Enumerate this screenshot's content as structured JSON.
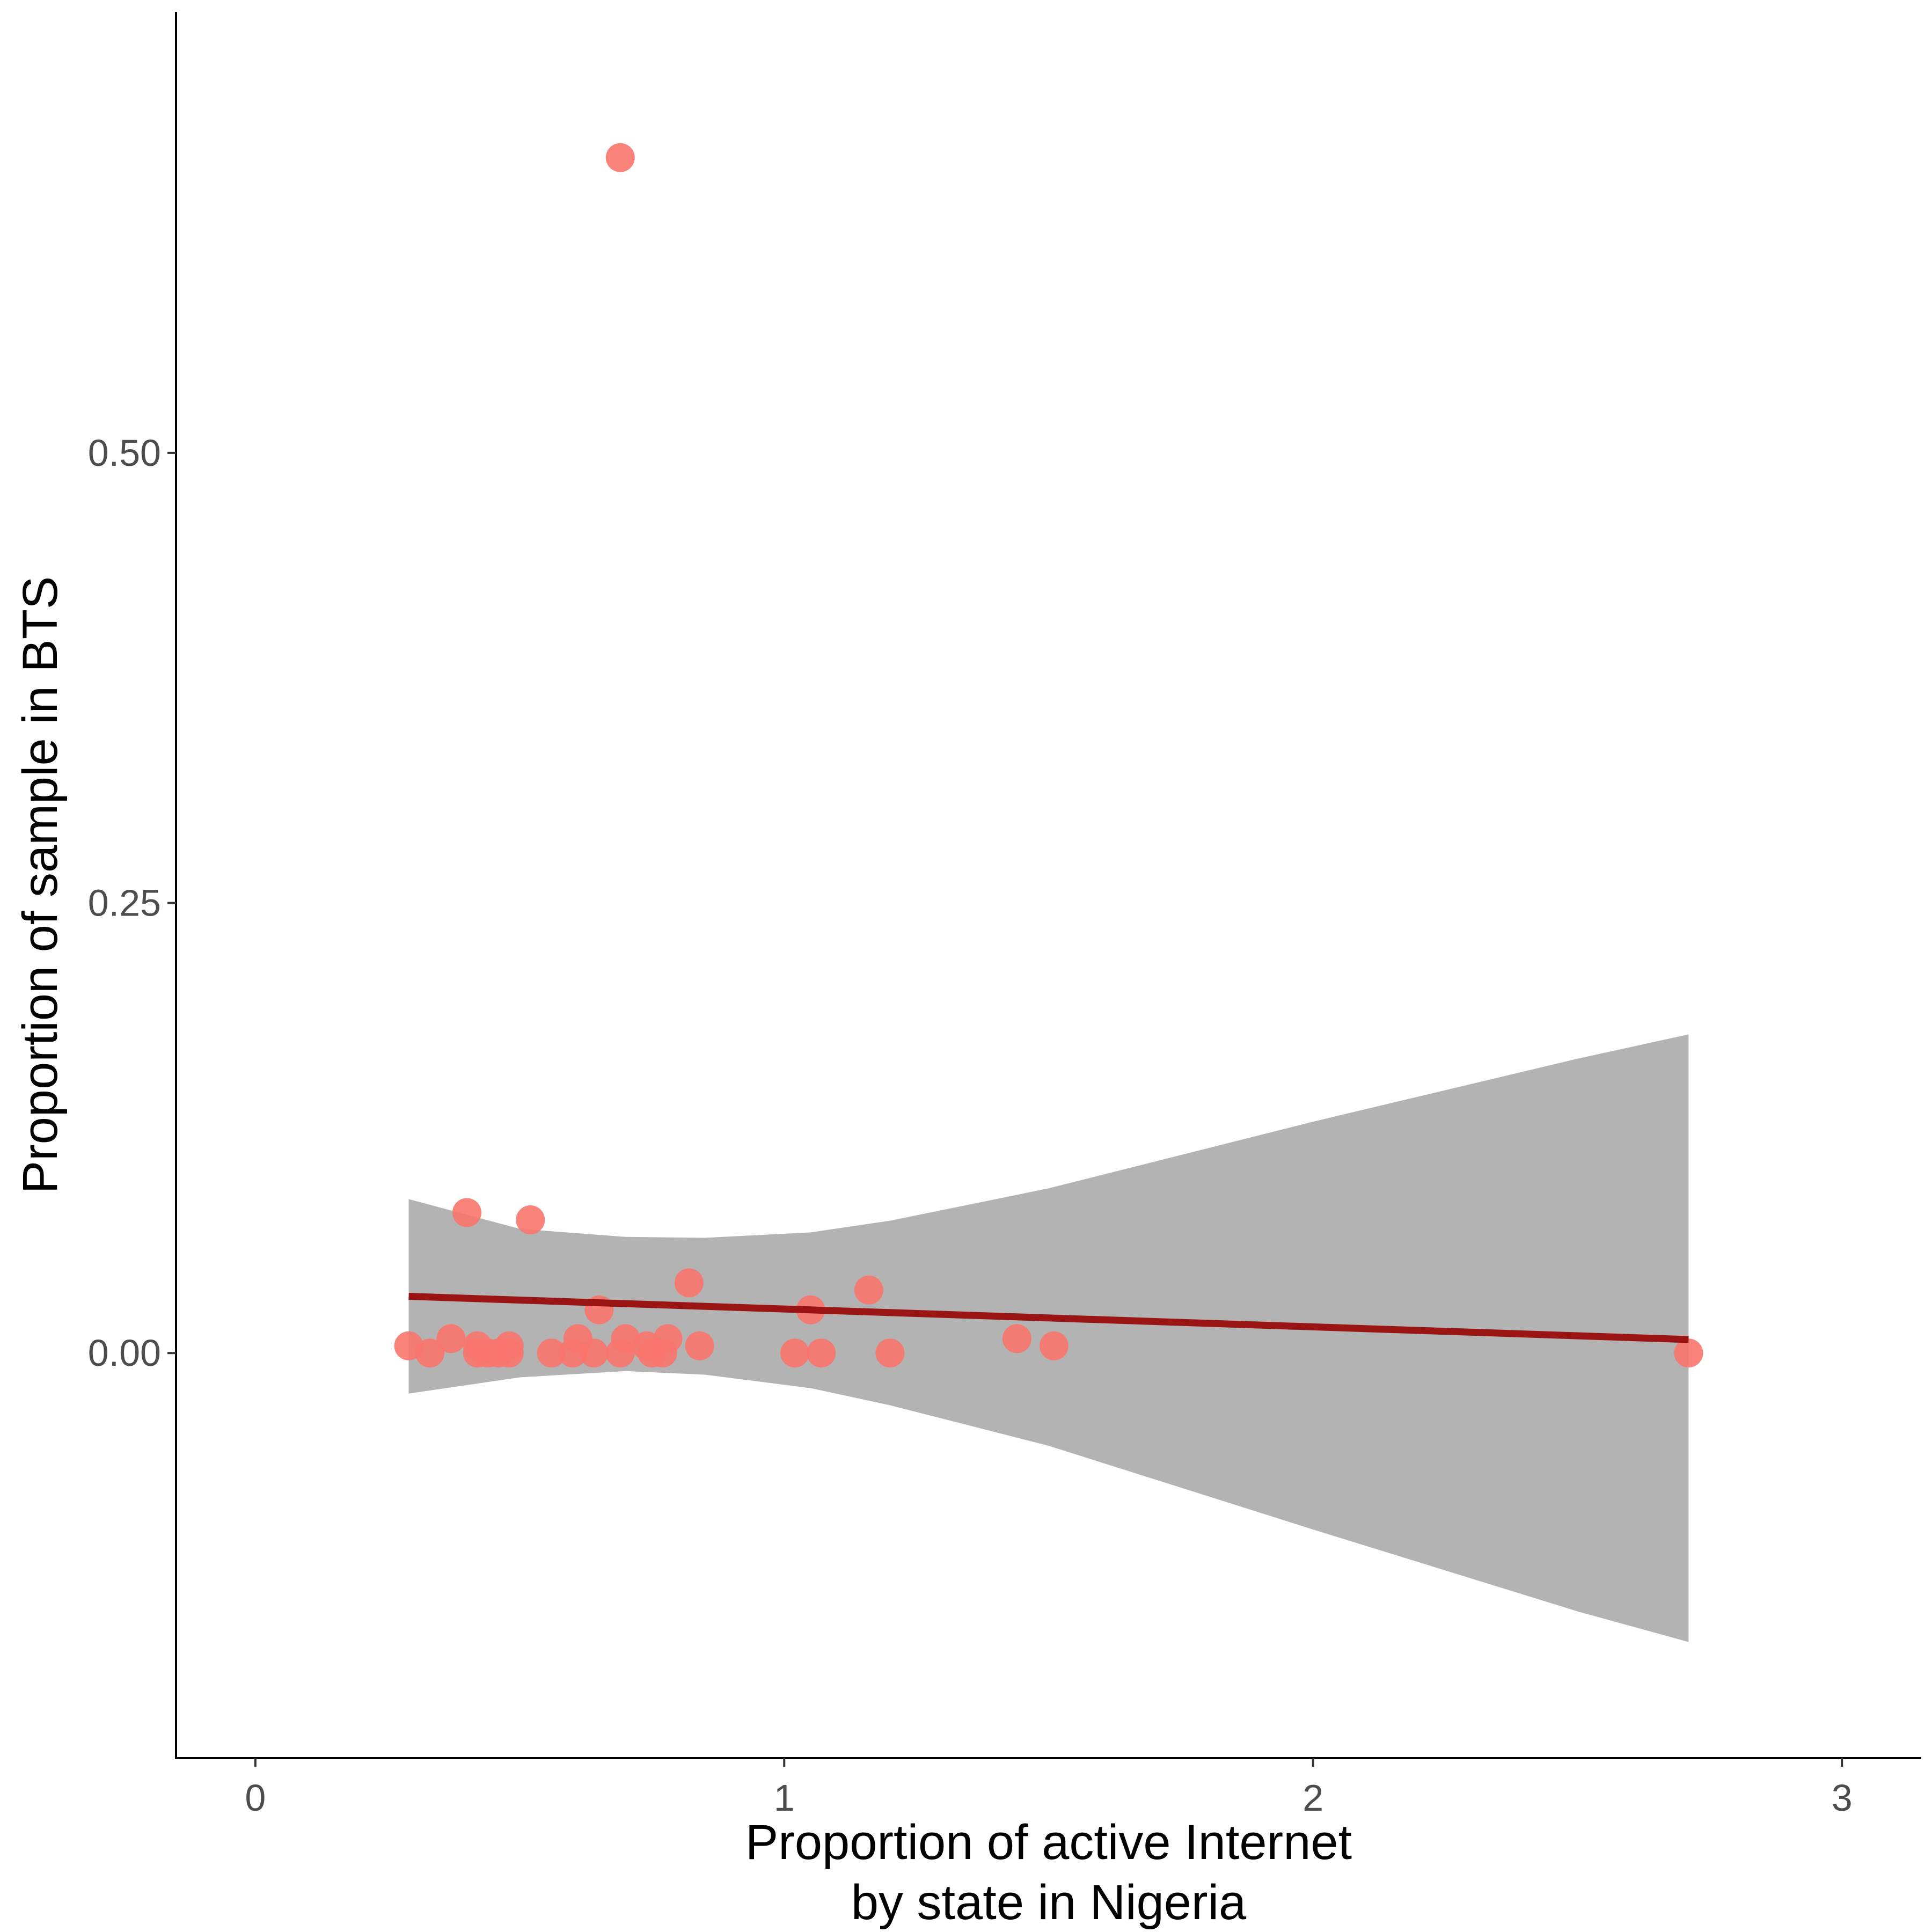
{
  "chart_data": {
    "type": "scatter",
    "title": "",
    "xlabel_lines": [
      "Proportion of active Internet",
      "by state in Nigeria"
    ],
    "ylabel": "Proportion of sample in BTS",
    "xlim": [
      -0.15,
      3.15
    ],
    "ylim": [
      -0.225,
      0.745
    ],
    "x_ticks": [
      {
        "value": 0,
        "label": "0"
      },
      {
        "value": 1,
        "label": "1"
      },
      {
        "value": 2,
        "label": "2"
      },
      {
        "value": 3,
        "label": "3"
      }
    ],
    "y_ticks": [
      {
        "value": 0.0,
        "label": "0.00"
      },
      {
        "value": 0.25,
        "label": "0.25"
      },
      {
        "value": 0.5,
        "label": "0.50"
      }
    ],
    "grid": false,
    "legend": "none",
    "colors": {
      "points": "#F8766D",
      "trend_line": "#9B1414",
      "confidence_band": "#999999"
    },
    "points": [
      {
        "x": 0.29,
        "y": 0.004
      },
      {
        "x": 0.33,
        "y": 0.0
      },
      {
        "x": 0.37,
        "y": 0.008
      },
      {
        "x": 0.4,
        "y": 0.078
      },
      {
        "x": 0.42,
        "y": 0.004
      },
      {
        "x": 0.42,
        "y": 0.0
      },
      {
        "x": 0.44,
        "y": 0.0
      },
      {
        "x": 0.46,
        "y": 0.0
      },
      {
        "x": 0.48,
        "y": 0.004
      },
      {
        "x": 0.48,
        "y": 0.0
      },
      {
        "x": 0.52,
        "y": 0.074
      },
      {
        "x": 0.56,
        "y": 0.0
      },
      {
        "x": 0.6,
        "y": 0.0
      },
      {
        "x": 0.61,
        "y": 0.008
      },
      {
        "x": 0.64,
        "y": 0.0
      },
      {
        "x": 0.65,
        "y": 0.024
      },
      {
        "x": 0.69,
        "y": 0.664
      },
      {
        "x": 0.69,
        "y": 0.0
      },
      {
        "x": 0.7,
        "y": 0.008
      },
      {
        "x": 0.74,
        "y": 0.004
      },
      {
        "x": 0.75,
        "y": 0.0
      },
      {
        "x": 0.77,
        "y": 0.0
      },
      {
        "x": 0.78,
        "y": 0.008
      },
      {
        "x": 0.82,
        "y": 0.039
      },
      {
        "x": 0.84,
        "y": 0.004
      },
      {
        "x": 1.02,
        "y": 0.0
      },
      {
        "x": 1.05,
        "y": 0.024
      },
      {
        "x": 1.07,
        "y": 0.0
      },
      {
        "x": 1.16,
        "y": 0.035
      },
      {
        "x": 1.2,
        "y": 0.0
      },
      {
        "x": 1.44,
        "y": 0.008
      },
      {
        "x": 1.51,
        "y": 0.004
      },
      {
        "x": 2.71,
        "y": 0.0
      }
    ],
    "trend_line": [
      {
        "x": 0.29,
        "y": 0.0315
      },
      {
        "x": 2.71,
        "y": 0.0075
      }
    ],
    "confidence_band": [
      {
        "x": 0.29,
        "lower": -0.0225,
        "upper": 0.0855
      },
      {
        "x": 0.5,
        "lower": -0.0135,
        "upper": 0.069
      },
      {
        "x": 0.7,
        "lower": -0.01,
        "upper": 0.0645
      },
      {
        "x": 0.85,
        "lower": -0.012,
        "upper": 0.064
      },
      {
        "x": 1.05,
        "lower": -0.0195,
        "upper": 0.067
      },
      {
        "x": 1.2,
        "lower": -0.029,
        "upper": 0.0735
      },
      {
        "x": 1.5,
        "lower": -0.0515,
        "upper": 0.0915
      },
      {
        "x": 2.0,
        "lower": -0.098,
        "upper": 0.1285
      },
      {
        "x": 2.5,
        "lower": -0.1435,
        "upper": 0.1635
      },
      {
        "x": 2.71,
        "lower": -0.1605,
        "upper": 0.177
      }
    ]
  }
}
